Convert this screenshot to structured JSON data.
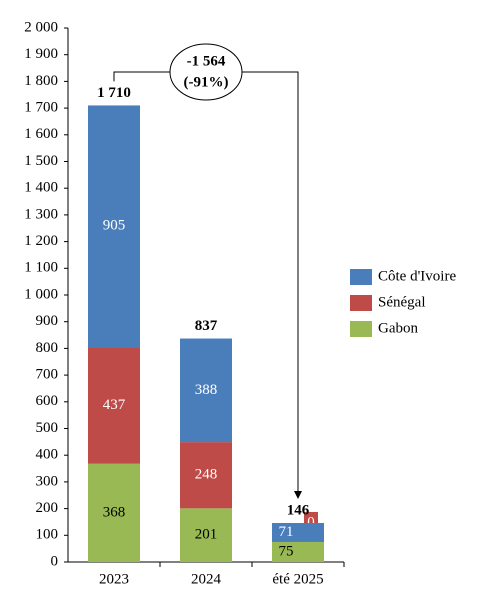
{
  "chart_data": {
    "type": "stacked_bar",
    "categories": [
      "2023",
      "2024",
      "été 2025"
    ],
    "series": [
      {
        "name": "Gabon",
        "color": "#98b954",
        "values": [
          368,
          201,
          75
        ]
      },
      {
        "name": "Sénégal",
        "color": "#be4b48",
        "values": [
          437,
          248,
          0
        ]
      },
      {
        "name": "Côte d'Ivoire",
        "color": "#4a7ebb",
        "values": [
          905,
          388,
          71
        ]
      }
    ],
    "totals": [
      1710,
      837,
      146
    ],
    "total_labels": [
      "1 710",
      "837",
      "146"
    ],
    "annotation": {
      "change": "-1 564",
      "percent": "(-91%)"
    },
    "ylim": [
      0,
      2000
    ],
    "yticks": [
      0,
      100,
      200,
      300,
      400,
      500,
      600,
      700,
      800,
      900,
      {
        "value": 1000,
        "label": "1 000"
      },
      {
        "value": 1100,
        "label": "1 100"
      },
      {
        "value": 1200,
        "label": "1 200"
      },
      {
        "value": 1300,
        "label": "1 300"
      },
      {
        "value": 1400,
        "label": "1 400"
      },
      {
        "value": 1500,
        "label": "1 500"
      },
      {
        "value": 1600,
        "label": "1 600"
      },
      {
        "value": 1700,
        "label": "1 700"
      },
      {
        "value": 1800,
        "label": "1 800"
      },
      {
        "value": 1900,
        "label": "1 900"
      },
      {
        "value": 2000,
        "label": "2 000"
      }
    ],
    "grid": false,
    "legend": "right"
  }
}
